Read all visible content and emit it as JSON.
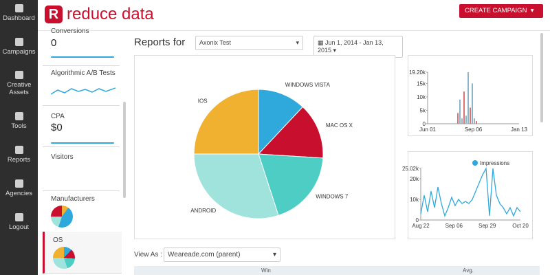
{
  "nav": [
    "Dashboard",
    "Campaigns",
    "Creative Assets",
    "Tools",
    "Reports",
    "Agencies",
    "Logout"
  ],
  "header": {
    "brand": "reduce data",
    "button": "CREATE CAMPAIGN"
  },
  "sidebar": [
    {
      "title": "Conversions",
      "value": "0"
    },
    {
      "title": "Algorithmic A/B Tests"
    },
    {
      "title": "CPA",
      "value": "$0"
    },
    {
      "title": "Visitors"
    },
    {
      "title": "Manufacturers"
    },
    {
      "title": "OS"
    }
  ],
  "reports": {
    "label": "Reports for",
    "account": "Axonix Test",
    "dates": "Jun 1, 2014 - Jan 13, 2015"
  },
  "pie": {
    "type": "pie",
    "categories": [
      "WINDOWS VISTA",
      "MAC OS X",
      "WINDOWS 7",
      "ANDROID",
      "IOS"
    ],
    "values": [
      12,
      14,
      19,
      30,
      25
    ],
    "colors": [
      "#2fa8dc",
      "#c8102e",
      "#4ecdc4",
      "#a0e3dc",
      "#f0b030"
    ]
  },
  "chart1": {
    "type": "bar",
    "x_labels": [
      "Jun 01",
      "Sep 06",
      "Jan 13"
    ],
    "values": [
      4000,
      9000,
      2000,
      12000,
      3000,
      19200,
      6000,
      15000,
      2000,
      1000
    ],
    "color": "#8bb5c8",
    "ylim": [
      0,
      19200
    ],
    "yticks": [
      0,
      {
        "value": 5000,
        "label": "5k"
      },
      {
        "value": 10000,
        "label": "10k"
      },
      {
        "value": 15000,
        "label": "15k"
      },
      {
        "value": 19200,
        "label": "19.20k"
      }
    ]
  },
  "chart2": {
    "type": "line",
    "series_name": "Impressions",
    "color": "#2fa8dc",
    "x_labels": [
      "Aug 22",
      "Sep 06",
      "Sep 29",
      "Oct 20"
    ],
    "values": [
      3000,
      12000,
      4000,
      14000,
      6000,
      16000,
      8000,
      2000,
      6000,
      11000,
      7000,
      10000,
      8000,
      9000,
      8000,
      10000,
      14000,
      18000,
      22000,
      25000,
      2000,
      25000,
      12000,
      8000,
      6000,
      3000,
      6000,
      2000,
      6000,
      4000
    ],
    "ylim": [
      0,
      25020
    ],
    "yticks": [
      0,
      {
        "value": 10000,
        "label": "10k"
      },
      {
        "value": 20000,
        "label": "20k"
      },
      {
        "value": 25020,
        "label": "25.02k"
      }
    ]
  },
  "view": {
    "label": "View As :",
    "account": "Weareade.com (parent)",
    "columns": [
      "Win",
      "Avg."
    ]
  }
}
